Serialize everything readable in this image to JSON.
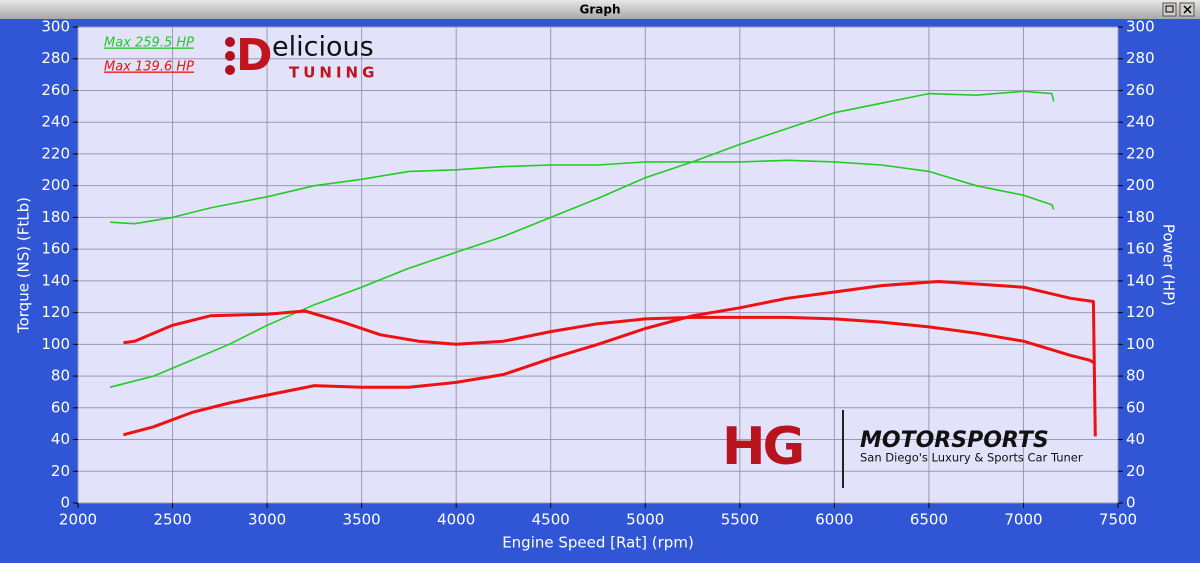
{
  "window_title": "Graph",
  "chart_data": {
    "type": "line",
    "xlabel": "Engine Speed [Rat] (rpm)",
    "ylabel": "Torque (NS) (FtLb)",
    "y2label": "Power (HP)",
    "xlim": [
      2000,
      7500
    ],
    "xticks": [
      2000,
      2500,
      3000,
      3500,
      4000,
      4500,
      5000,
      5500,
      6000,
      6500,
      7000,
      7500
    ],
    "ylim": [
      0,
      300
    ],
    "yticks": [
      0,
      20,
      40,
      60,
      80,
      100,
      120,
      140,
      160,
      180,
      200,
      220,
      240,
      260,
      280,
      300
    ],
    "y2lim": [
      0,
      300
    ],
    "y2ticks": [
      0,
      20,
      40,
      60,
      80,
      100,
      120,
      140,
      160,
      180,
      200,
      220,
      240,
      260,
      280,
      300
    ],
    "grid": true,
    "annotations": [
      {
        "text": "Max 259.5 HP",
        "color": "#22cc22"
      },
      {
        "text": "Max 139.6 HP",
        "color": "#ee1111"
      }
    ],
    "branding": [
      "D",
      "elicious",
      "TUNING",
      "HG",
      "MOTORSPORTS",
      "San Diego's Luxury & Sports Car Tuner"
    ],
    "series": [
      {
        "color": "#22cc22",
        "axis": "y2",
        "x": [
          2170,
          2400,
          2600,
          2800,
          3000,
          3250,
          3500,
          3750,
          4000,
          4250,
          4500,
          4750,
          5000,
          5250,
          5500,
          5750,
          6000,
          6250,
          6500,
          6750,
          7000,
          7150,
          7160
        ],
        "values": [
          73,
          80,
          90,
          100,
          112,
          125,
          136,
          148,
          158,
          168,
          180,
          192,
          205,
          215,
          226,
          236,
          246,
          252,
          258,
          257,
          259.5,
          258,
          253
        ]
      },
      {
        "color": "#22cc22",
        "axis": "y",
        "x": [
          2170,
          2300,
          2500,
          2700,
          3000,
          3250,
          3500,
          3750,
          4000,
          4250,
          4500,
          4750,
          5000,
          5500,
          5750,
          6000,
          6250,
          6500,
          6750,
          7000,
          7150,
          7160
        ],
        "values": [
          177,
          176,
          180,
          186,
          193,
          200,
          204,
          209,
          210,
          212,
          213,
          213,
          215,
          215,
          216,
          215,
          213,
          209,
          200,
          194,
          188,
          185
        ]
      },
      {
        "color": "#ee1111",
        "axis": "y",
        "x": [
          2240,
          2300,
          2500,
          2700,
          3000,
          3200,
          3400,
          3600,
          3800,
          4000,
          4250,
          4500,
          4750,
          5000,
          5250,
          5500,
          5750,
          6000,
          6250,
          6500,
          6750,
          7000,
          7250,
          7350,
          7380
        ],
        "values": [
          101,
          102,
          112,
          118,
          119,
          121,
          114,
          106,
          102,
          100,
          102,
          108,
          113,
          116,
          117,
          117,
          117,
          116,
          114,
          111,
          107,
          102,
          93,
          90,
          88
        ]
      },
      {
        "color": "#ee1111",
        "axis": "y2",
        "x": [
          2240,
          2400,
          2600,
          2800,
          3000,
          3250,
          3500,
          3750,
          4000,
          4250,
          4500,
          4750,
          5000,
          5250,
          5500,
          5750,
          6000,
          6250,
          6550,
          6750,
          7000,
          7250,
          7370,
          7380
        ],
        "values": [
          43,
          48,
          57,
          63,
          68,
          74,
          73,
          73,
          76,
          81,
          91,
          100,
          110,
          118,
          123,
          129,
          133,
          137,
          139.6,
          138,
          136,
          129,
          127,
          42
        ]
      }
    ]
  }
}
